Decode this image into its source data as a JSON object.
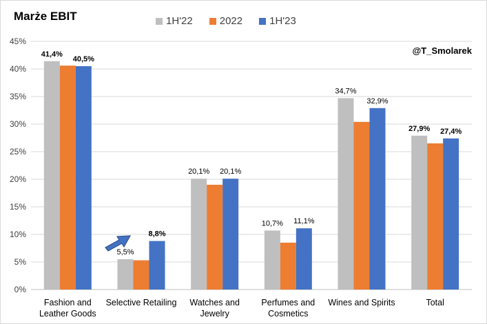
{
  "chart_data": {
    "type": "bar",
    "title": "Marże EBIT",
    "watermark": "@T_Smolarek",
    "categories": [
      [
        "Fashion and",
        "Leather Goods"
      ],
      [
        "Selective Retailing"
      ],
      [
        "Watches and",
        "Jewelry"
      ],
      [
        "Perfumes and",
        "Cosmetics"
      ],
      [
        "Wines and Spirits"
      ],
      [
        "Total"
      ]
    ],
    "series": [
      {
        "name": "1H'22",
        "color": "#bfbfbf",
        "values": [
          41.4,
          5.5,
          20.1,
          10.7,
          34.7,
          27.9
        ]
      },
      {
        "name": "2022",
        "color": "#ed7d31",
        "values": [
          40.6,
          5.3,
          19.0,
          8.5,
          30.4,
          26.5
        ]
      },
      {
        "name": "1H'23",
        "color": "#4472c4",
        "values": [
          40.5,
          8.8,
          20.1,
          11.1,
          32.9,
          27.4
        ]
      }
    ],
    "data_labels": [
      [
        "41,4%",
        "5,5%",
        "20,1%",
        "10,7%",
        "34,7%",
        "27,9%"
      ],
      [
        "",
        "",
        "",
        "",
        "",
        ""
      ],
      [
        "40,5%",
        "8,8%",
        "20,1%",
        "11,1%",
        "32,9%",
        "27,4%"
      ]
    ],
    "bold_labels": [
      true,
      false,
      false,
      false,
      false,
      true
    ],
    "highlight_categories": [
      1
    ],
    "y_ticks": [
      "0%",
      "5%",
      "10%",
      "15%",
      "20%",
      "25%",
      "30%",
      "35%",
      "40%",
      "45%"
    ],
    "ylim": [
      0,
      45
    ],
    "y_step": 5,
    "xlabel": "",
    "ylabel": "",
    "grid": true,
    "legend_position": "top-center",
    "annotation": {
      "type": "arrow",
      "category_index": 1,
      "description": "upward arrow pointing to 8,8% bar"
    }
  }
}
